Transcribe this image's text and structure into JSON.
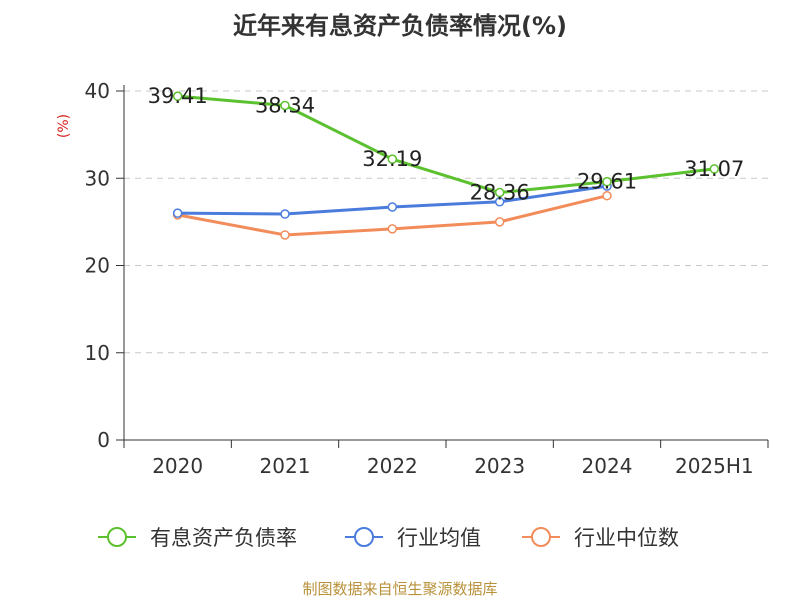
{
  "chart_data": {
    "type": "line",
    "title": "近年来有息资产负债率情况(%)",
    "ylabel": "(%)",
    "ylim": [
      0,
      40
    ],
    "yticks": [
      0,
      10,
      20,
      30,
      40
    ],
    "grid": true,
    "legend_position": "bottom",
    "categories": [
      "2020",
      "2021",
      "2022",
      "2023",
      "2024",
      "2025H1"
    ],
    "series": [
      {
        "name": "有息资产负债率",
        "color": "#5cc12e",
        "values": [
          39.41,
          38.34,
          32.19,
          28.36,
          29.61,
          31.07
        ],
        "labels": [
          "39.41",
          "38.34",
          "32.19",
          "28.36",
          "29.61",
          "31.07"
        ]
      },
      {
        "name": "行业均值",
        "color": "#4a7cdd",
        "values": [
          26.0,
          25.9,
          26.7,
          27.3,
          29.1,
          null
        ]
      },
      {
        "name": "行业中位数",
        "color": "#f28c5a",
        "values": [
          25.8,
          23.5,
          24.2,
          25.0,
          28.0,
          null
        ]
      }
    ]
  },
  "footer": {
    "source": "制图数据来自恒生聚源数据库"
  }
}
